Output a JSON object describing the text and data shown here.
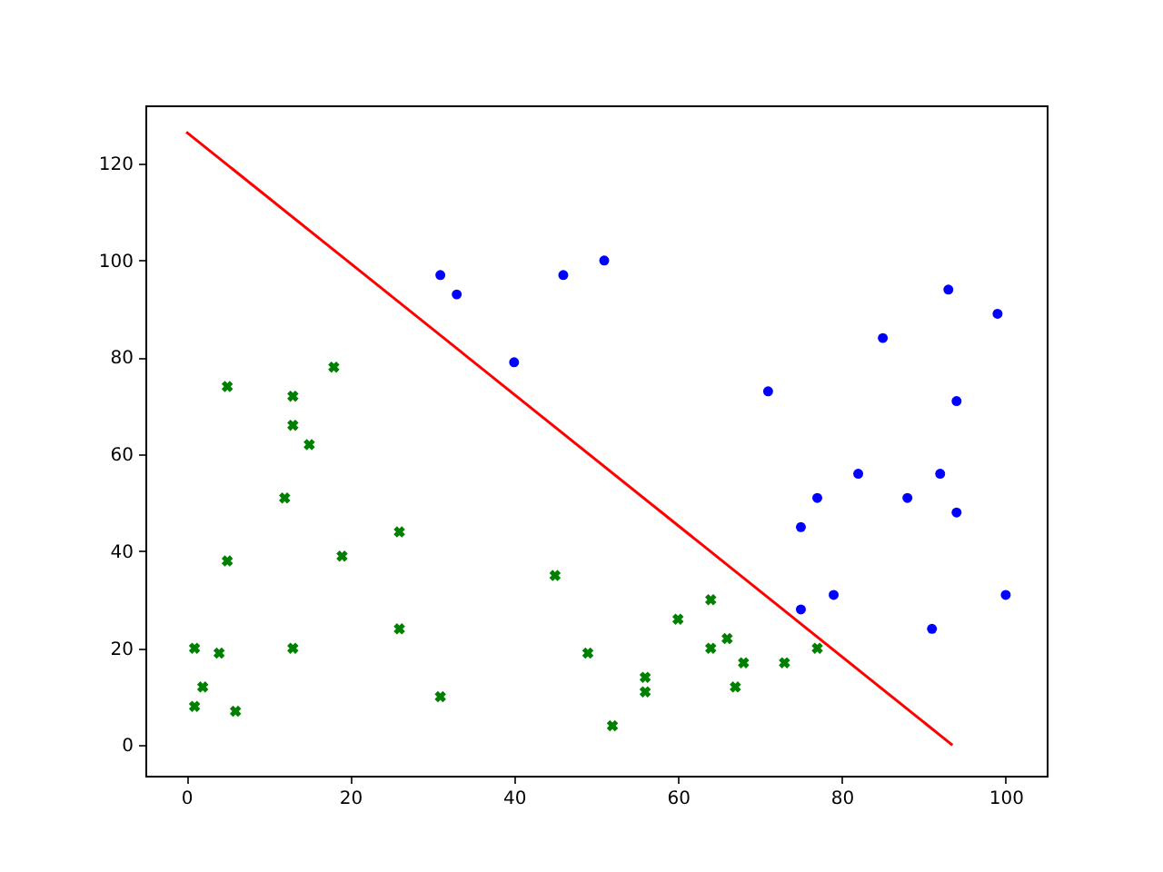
{
  "chart_data": {
    "type": "scatter",
    "xlim": [
      -5,
      105
    ],
    "ylim": [
      -6.3,
      132
    ],
    "xticks": [
      0,
      20,
      40,
      60,
      80,
      100
    ],
    "yticks": [
      0,
      20,
      40,
      60,
      80,
      100,
      120
    ],
    "grid": false,
    "series": [
      {
        "color": "#0000ff",
        "marker": "circle",
        "x": [
          31,
          33,
          40,
          46,
          51,
          71,
          75,
          77,
          79,
          75,
          82,
          85,
          88,
          91,
          92,
          93,
          94,
          94,
          99,
          100
        ],
        "values": [
          97,
          93,
          79,
          97,
          100,
          73,
          45,
          51,
          31,
          28,
          56,
          84,
          51,
          24,
          56,
          94,
          71,
          48,
          89,
          31
        ]
      },
      {
        "color": "#008000",
        "marker": "cross",
        "x": [
          1,
          1,
          2,
          4,
          5,
          5,
          6,
          12,
          13,
          13,
          13,
          15,
          18,
          19,
          26,
          26,
          31,
          45,
          49,
          52,
          56,
          56,
          60,
          64,
          64,
          66,
          67,
          68,
          73,
          77
        ],
        "values": [
          8,
          20,
          12,
          19,
          74,
          38,
          7,
          51,
          72,
          66,
          20,
          62,
          78,
          39,
          44,
          24,
          10,
          35,
          19,
          4,
          14,
          11,
          26,
          30,
          20,
          22,
          12,
          17,
          17,
          20
        ]
      },
      {
        "type": "line",
        "color": "#ff0000",
        "x": [
          0,
          93.5
        ],
        "values": [
          126.5,
          0
        ]
      }
    ]
  }
}
